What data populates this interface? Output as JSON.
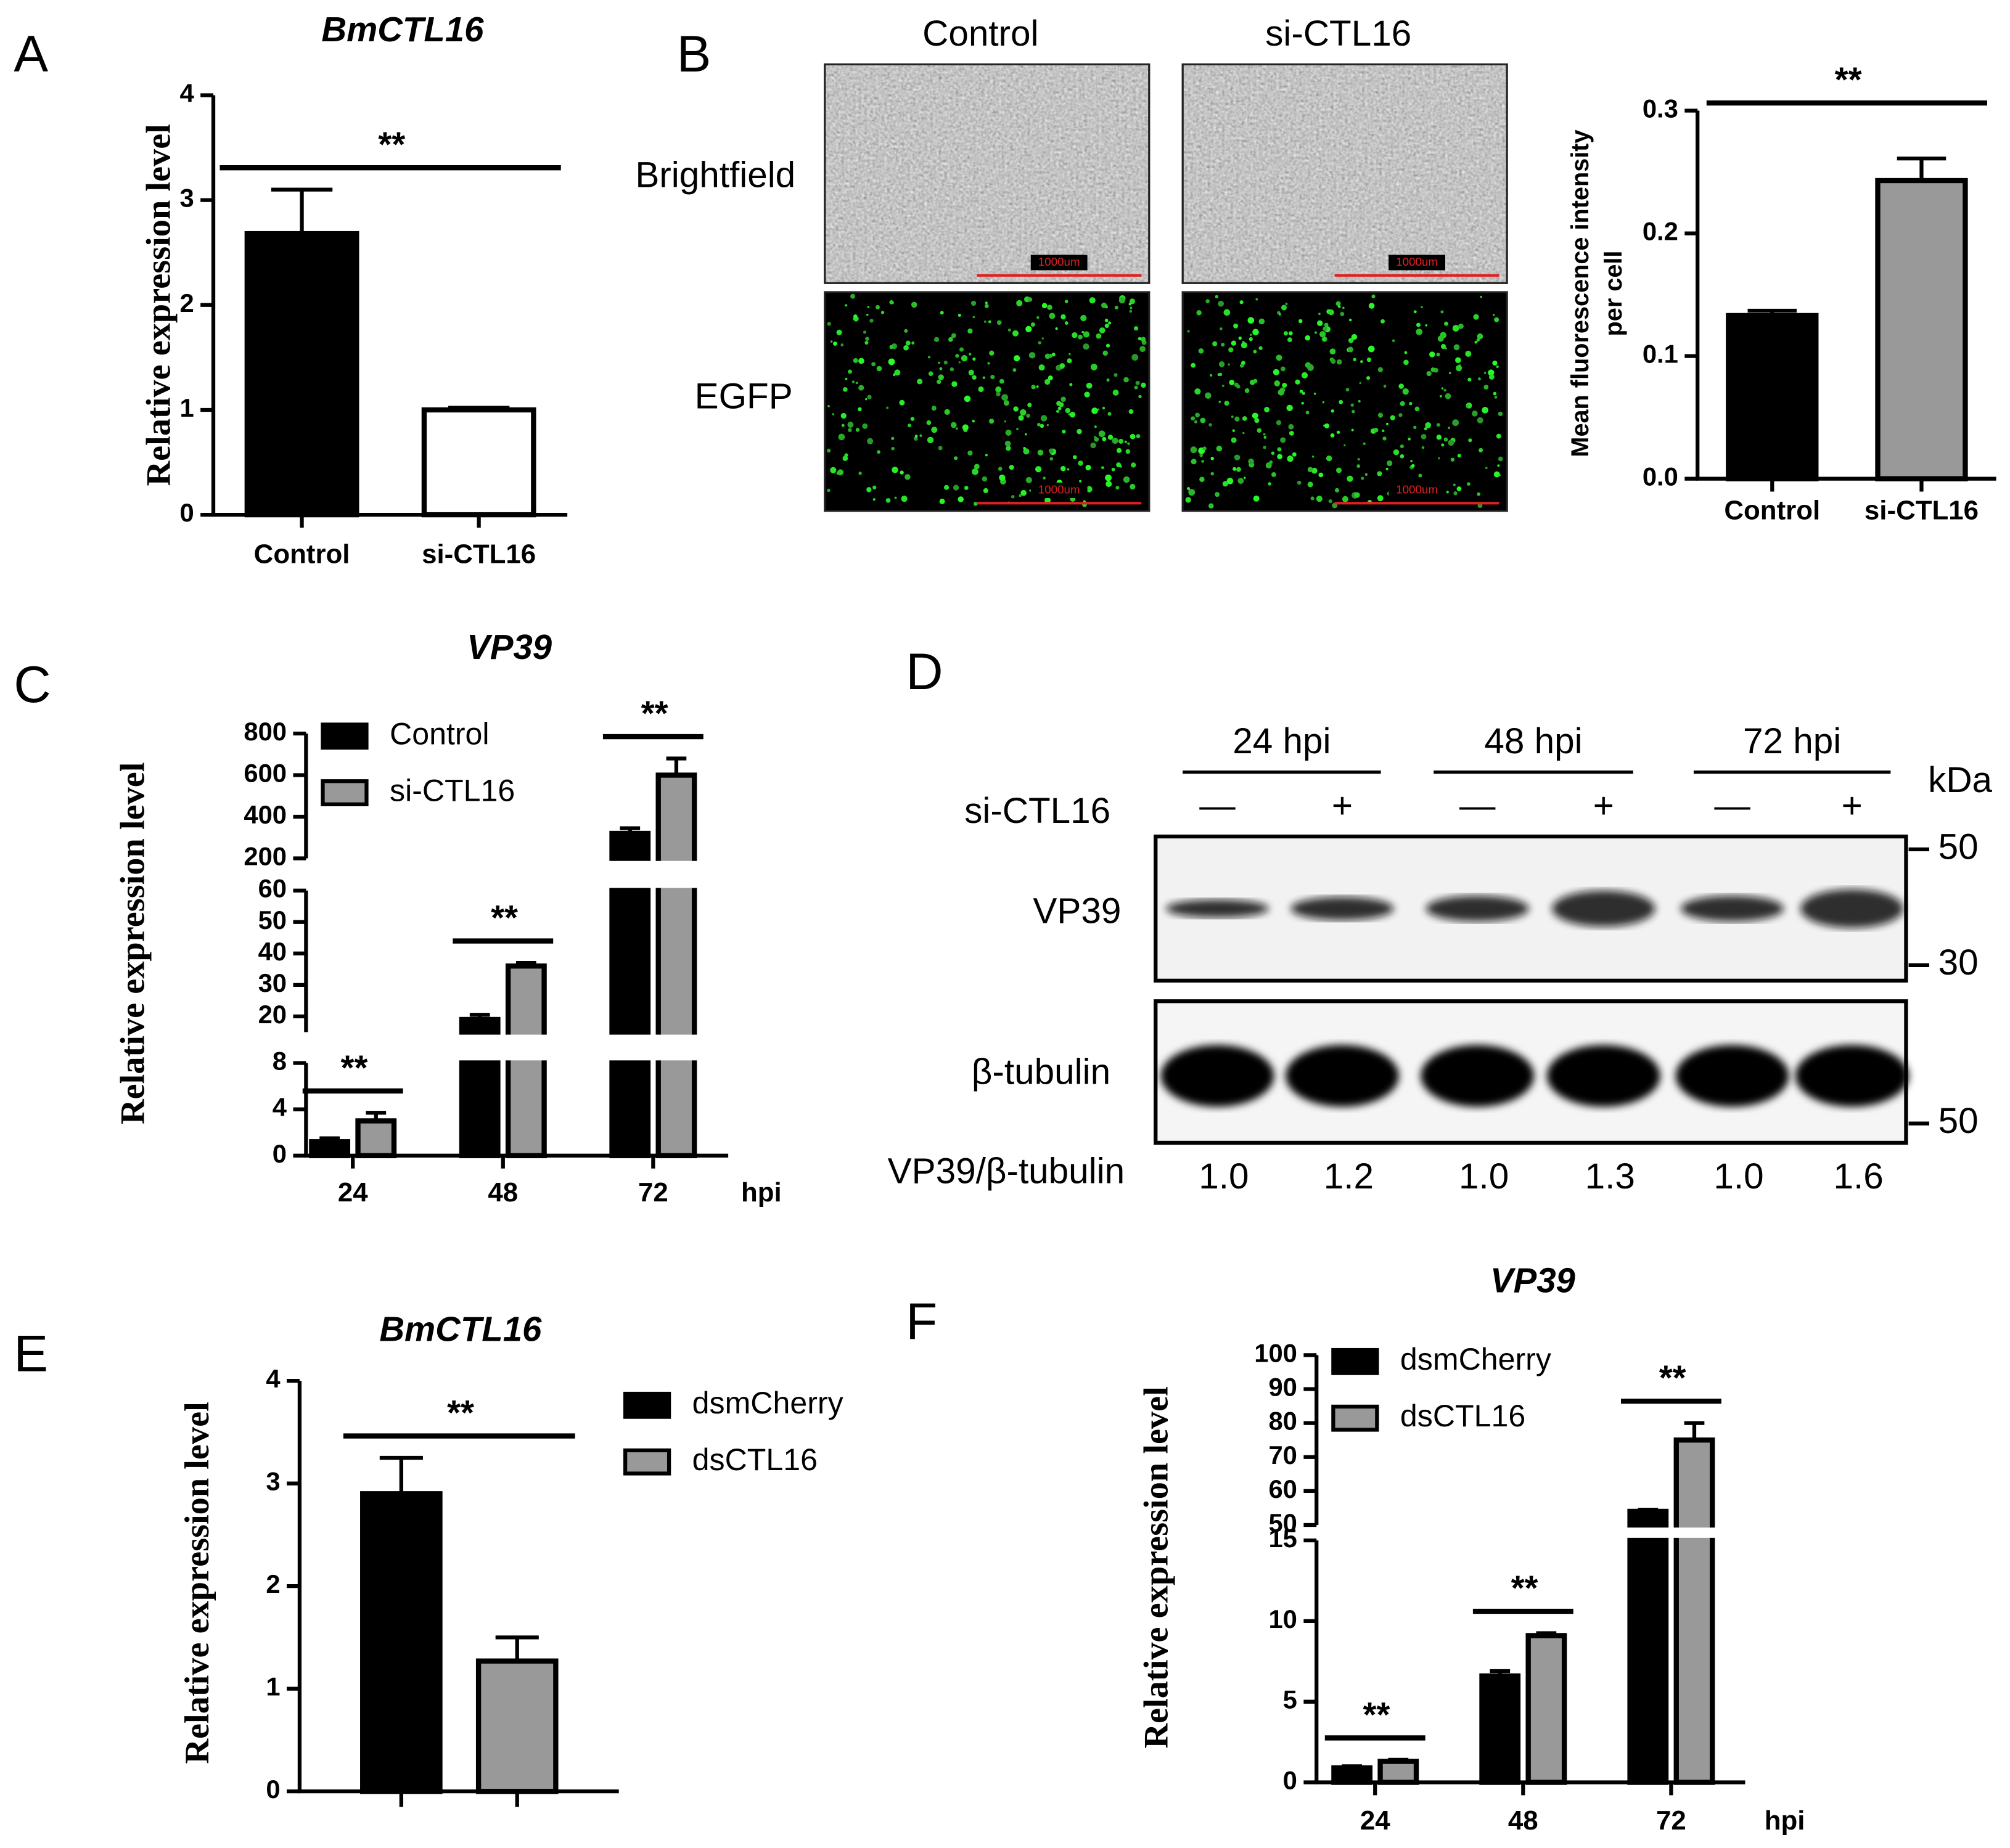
{
  "panel_labels": [
    "A",
    "B",
    "C",
    "D",
    "E",
    "F"
  ],
  "chart_data": [
    {
      "type": "bar",
      "title": "BmCTL16",
      "ylabel": "Relative expression level",
      "categories": [
        "Control",
        "si-CTL16"
      ],
      "values": [
        2.68,
        1.0
      ],
      "errors": [
        0.42,
        0.02
      ],
      "colors": [
        "#000000",
        "#ffffff"
      ],
      "ylim": [
        0,
        4
      ],
      "yticks": [
        0,
        1,
        2,
        3,
        4
      ],
      "significance": "**"
    },
    {
      "type": "bar",
      "ylabel": [
        "Mean fluorescence intensity",
        "per cell"
      ],
      "categories": [
        "Control",
        "si-CTL16"
      ],
      "values": [
        0.133,
        0.243
      ],
      "errors": [
        0.004,
        0.018
      ],
      "colors": [
        "#000000",
        "#999999"
      ],
      "ylim": [
        0,
        0.3
      ],
      "yticks": [
        {
          "value": 0,
          "label": "0.0"
        },
        0.1,
        0.2,
        0.3
      ],
      "significance": "**"
    },
    {
      "type": "bar",
      "title": "VP39",
      "ylabel": "Relative expression level",
      "xlabel": "hpi",
      "categories": [
        "24",
        "48",
        "72"
      ],
      "series": [
        {
          "name": "Control",
          "color": "#000000",
          "values": [
            1.2,
            19,
            320
          ],
          "errors": [
            0.3,
            1.5,
            25
          ]
        },
        {
          "name": "si-CTL16",
          "color": "#999999",
          "values": [
            3.0,
            36,
            600
          ],
          "errors": [
            0.7,
            1,
            80
          ]
        }
      ],
      "ysegments": [
        {
          "ylim": [
            0,
            8
          ],
          "yticks": [
            0,
            4,
            8
          ]
        },
        {
          "ylim": [
            15,
            60
          ],
          "yticks": [
            20,
            30,
            40,
            50,
            60
          ]
        },
        {
          "ylim": [
            200,
            800
          ],
          "yticks": [
            200,
            400,
            600,
            800
          ]
        }
      ],
      "significance": [
        "**",
        "**",
        "**"
      ]
    },
    {
      "type": "bar",
      "title": "BmCTL16",
      "ylabel": "Relative expression level",
      "categories": [
        null
      ],
      "series": [
        {
          "name": "dsmCherry",
          "color": "#000000",
          "values": [
            2.9
          ],
          "errors": [
            0.35
          ]
        },
        {
          "name": "dsCTL16",
          "color": "#999999",
          "values": [
            1.27
          ],
          "errors": [
            0.23
          ]
        }
      ],
      "ylim": [
        0,
        4
      ],
      "yticks": [
        0,
        1,
        2,
        3,
        4
      ],
      "significance": "**"
    },
    {
      "type": "bar",
      "title": "VP39",
      "ylabel": "Relative expression level",
      "xlabel": "hpi",
      "categories": [
        "24",
        "48",
        "72"
      ],
      "series": [
        {
          "name": "dsmCherry",
          "color": "#000000",
          "values": [
            0.9,
            6.6,
            54
          ],
          "errors": [
            0.1,
            0.3,
            0.5
          ]
        },
        {
          "name": "dsCTL16",
          "color": "#999999",
          "values": [
            1.3,
            9.1,
            75
          ],
          "errors": [
            0.1,
            0.15,
            5
          ]
        }
      ],
      "ysegments": [
        {
          "ylim": [
            0,
            15
          ],
          "yticks": [
            0,
            5,
            10,
            15
          ]
        },
        {
          "ylim": [
            50,
            100
          ],
          "yticks": [
            50,
            60,
            70,
            80,
            90,
            100
          ]
        }
      ],
      "significance": [
        "**",
        "**",
        "**"
      ]
    }
  ],
  "micrographs": {
    "columns": [
      "Control",
      "si-CTL16"
    ],
    "rows": [
      "Brightfield",
      "EGFP"
    ],
    "scale_bar": "1000um"
  },
  "blot": {
    "groups": [
      "24 hpi",
      "48 hpi",
      "72 hpi"
    ],
    "treatment": "si-CTL16",
    "lanes": [
      "—",
      "+",
      "—",
      "+",
      "—",
      "+"
    ],
    "unit": "kDa",
    "markers": [
      50,
      30,
      50
    ],
    "bands": [
      "VP39",
      "β-tubulin"
    ],
    "ratio_label": "VP39/β-tubulin",
    "ratios": [
      "1.0",
      "1.2",
      "1.0",
      "1.3",
      "1.0",
      "1.6"
    ]
  }
}
